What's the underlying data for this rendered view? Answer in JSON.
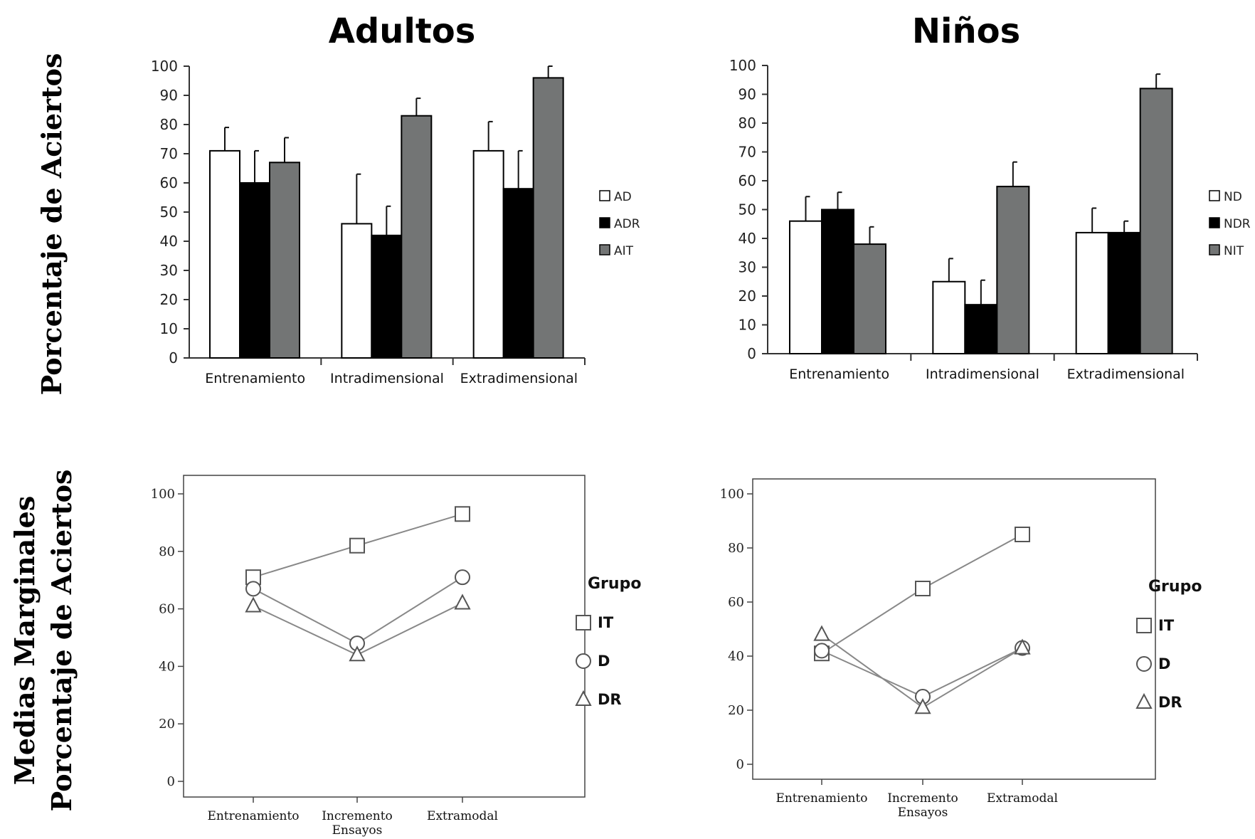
{
  "titles": {
    "adults": "Adultos",
    "children": "Niños"
  },
  "ylabels": {
    "top": "Porcentaje de Aciertos",
    "bottom_line1": "Medias Marginales",
    "bottom_line2": "Porcentaje de Aciertos"
  },
  "chart_data": [
    {
      "id": "adults-bar",
      "type": "bar",
      "title": "Adultos",
      "categories": [
        "Entrenamiento",
        "Intradimensional",
        "Extradimensional"
      ],
      "ylim": [
        0,
        100
      ],
      "yticks": [
        0,
        10,
        20,
        30,
        40,
        50,
        60,
        70,
        80,
        90,
        100
      ],
      "legend_position": "right",
      "series": [
        {
          "name": "AD",
          "color": "#ffffff",
          "values": [
            71,
            46,
            71
          ],
          "errors": [
            8,
            17,
            10
          ]
        },
        {
          "name": "ADR",
          "color": "#000000",
          "values": [
            60,
            42,
            58
          ],
          "errors": [
            11,
            10,
            13
          ]
        },
        {
          "name": "AIT",
          "color": "#737575",
          "values": [
            67,
            83,
            96
          ],
          "errors": [
            8.5,
            6,
            4
          ]
        }
      ]
    },
    {
      "id": "children-bar",
      "type": "bar",
      "title": "Niños",
      "categories": [
        "Entrenamiento",
        "Intradimensional",
        "Extradimensional"
      ],
      "ylim": [
        0,
        100
      ],
      "yticks": [
        0,
        10,
        20,
        30,
        40,
        50,
        60,
        70,
        80,
        90,
        100
      ],
      "legend_position": "right",
      "series": [
        {
          "name": "ND",
          "color": "#ffffff",
          "values": [
            46,
            25,
            42
          ],
          "errors": [
            8.5,
            8,
            8.5
          ]
        },
        {
          "name": "NDR",
          "color": "#000000",
          "values": [
            50,
            17,
            42
          ],
          "errors": [
            6,
            8.5,
            4
          ]
        },
        {
          "name": "NIT",
          "color": "#737575",
          "values": [
            38,
            58,
            92
          ],
          "errors": [
            6,
            8.5,
            5
          ]
        }
      ]
    },
    {
      "id": "adults-line",
      "type": "line",
      "categories": [
        "Entrenamiento",
        "Incremento Ensayos",
        "Extramodal"
      ],
      "ylim": [
        0,
        100
      ],
      "yticks": [
        0,
        20,
        40,
        60,
        80,
        100
      ],
      "legend_title": "Grupo",
      "legend_position": "right",
      "series": [
        {
          "name": "IT",
          "marker": "square",
          "values": [
            71,
            82,
            93
          ]
        },
        {
          "name": "D",
          "marker": "circle",
          "values": [
            67,
            48,
            71
          ]
        },
        {
          "name": "DR",
          "marker": "triangle",
          "values": [
            61,
            44,
            62
          ]
        }
      ]
    },
    {
      "id": "children-line",
      "type": "line",
      "categories": [
        "Entrenamiento",
        "Incremento Ensayos",
        "Extramodal"
      ],
      "ylim": [
        0,
        100
      ],
      "yticks": [
        0,
        20,
        40,
        60,
        80,
        100
      ],
      "legend_title": "Grupo",
      "legend_position": "right",
      "series": [
        {
          "name": "IT",
          "marker": "square",
          "values": [
            41,
            65,
            85
          ]
        },
        {
          "name": "D",
          "marker": "circle",
          "values": [
            42,
            25,
            43
          ]
        },
        {
          "name": "DR",
          "marker": "triangle",
          "values": [
            48,
            21,
            43
          ]
        }
      ]
    }
  ]
}
